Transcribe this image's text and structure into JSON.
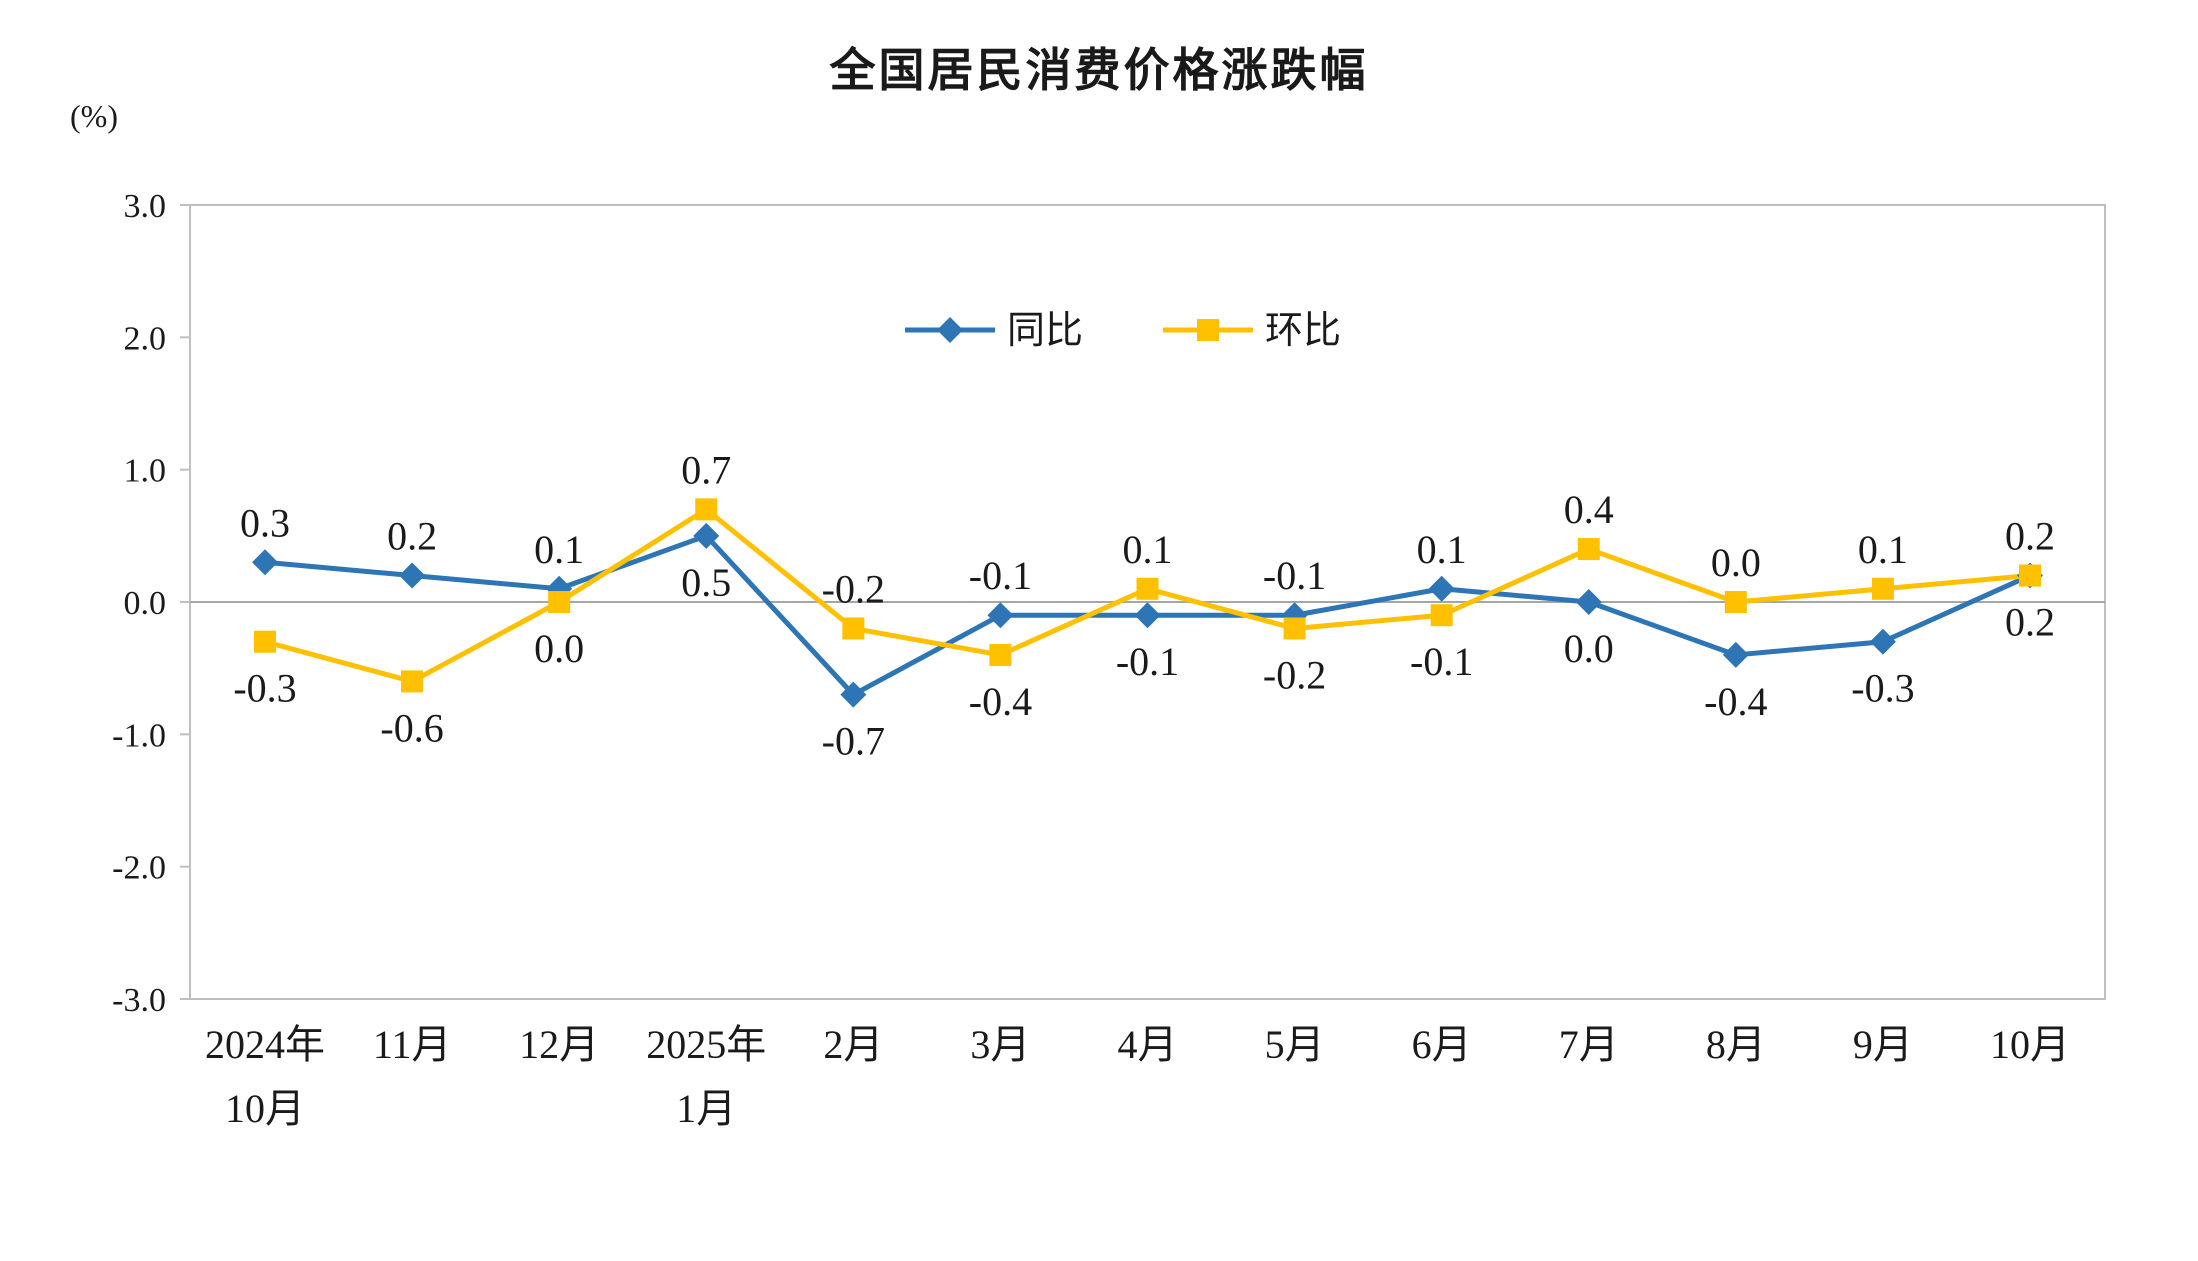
{
  "chart_data": {
    "type": "line",
    "title": "全国居民消费价格涨跌幅",
    "unit_label": "(%)",
    "categories": [
      [
        "2024年",
        "10月"
      ],
      [
        "11月"
      ],
      [
        "12月"
      ],
      [
        "2025年",
        "1月"
      ],
      [
        "2月"
      ],
      [
        "3月"
      ],
      [
        "4月"
      ],
      [
        "5月"
      ],
      [
        "6月"
      ],
      [
        "7月"
      ],
      [
        "8月"
      ],
      [
        "9月"
      ],
      [
        "10月"
      ]
    ],
    "series": [
      {
        "key": "tongbi",
        "name": "同比",
        "color": "#2E75B6",
        "marker": "diamond",
        "values": [
          0.3,
          0.2,
          0.1,
          0.5,
          -0.7,
          -0.1,
          -0.1,
          -0.1,
          0.1,
          0.0,
          -0.4,
          -0.3,
          0.2
        ]
      },
      {
        "key": "huanbi",
        "name": "环比",
        "color": "#FFC000",
        "marker": "square",
        "values": [
          -0.3,
          -0.6,
          0.0,
          0.7,
          -0.2,
          -0.4,
          0.1,
          -0.2,
          -0.1,
          0.4,
          0.0,
          0.1,
          0.2
        ]
      }
    ],
    "ylim": [
      -3.0,
      3.0
    ],
    "ytick_values": [
      3.0,
      2.0,
      1.0,
      0.0,
      -1.0,
      -2.0,
      -3.0
    ],
    "yticks": [
      "3.0",
      "2.0",
      "1.0",
      "0.0",
      "-1.0",
      "-2.0",
      "-3.0"
    ],
    "grid": false,
    "legend": {
      "position": "inside-top-center",
      "entries": [
        "同比",
        "环比"
      ]
    },
    "border_color": "#BFBFBF",
    "zero_line_color": "#A6A6A6",
    "label_decimals": 1
  }
}
